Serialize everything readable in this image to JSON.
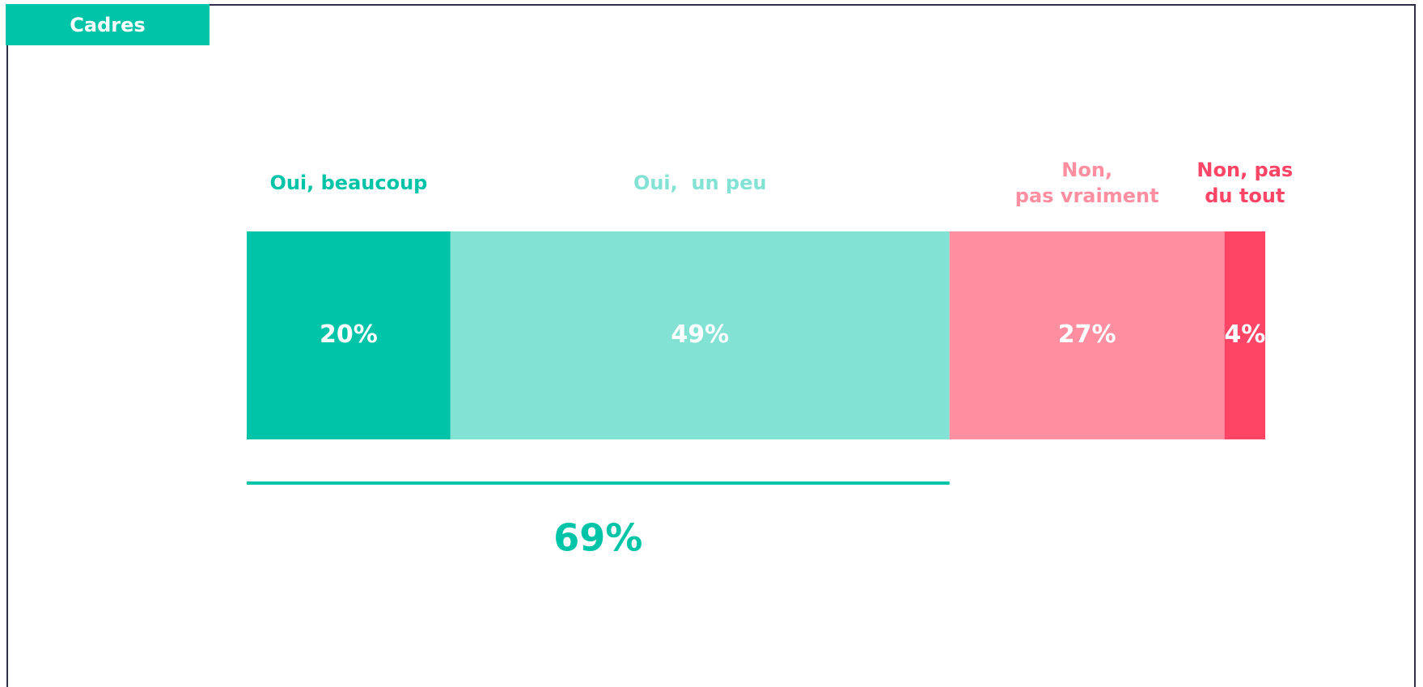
{
  "chart_data": {
    "type": "stacked_bar",
    "title": "Cadres",
    "categories": [
      [
        "Oui, beaucoup"
      ],
      [
        "Oui,  un peu"
      ],
      [
        "Non,",
        "pas vraiment"
      ],
      [
        "Non, pas",
        "du tout"
      ]
    ],
    "values": [
      20,
      49,
      27,
      4
    ],
    "value_labels": [
      "20%",
      "49%",
      "27%",
      "4%"
    ],
    "colors": [
      "#00c4a7",
      "#82e2d4",
      "#ff8ea0",
      "#ff4566"
    ],
    "annotation": {
      "value": 69,
      "label": "69%",
      "color": "#00c4a7"
    }
  }
}
